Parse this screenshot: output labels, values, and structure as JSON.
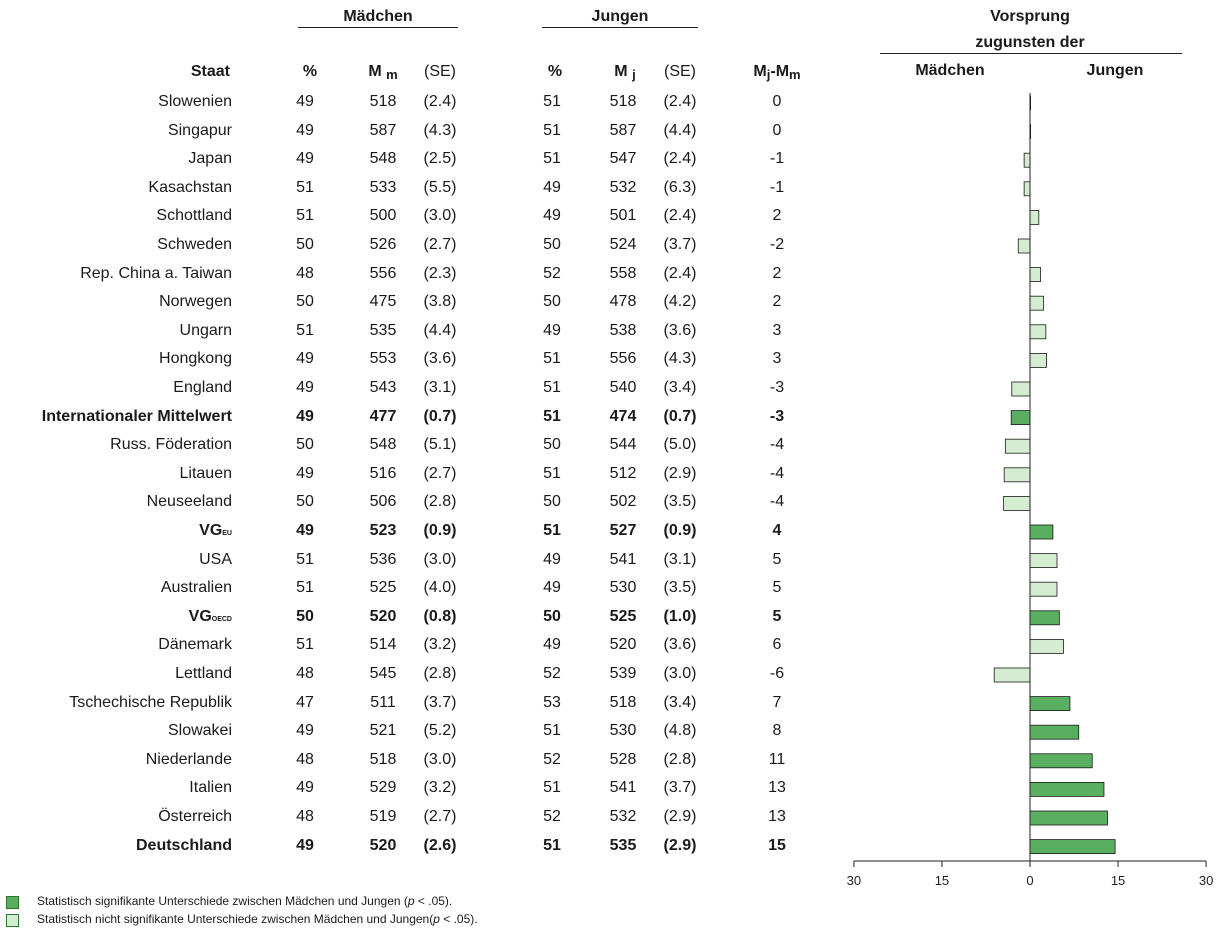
{
  "chart_data": {
    "type": "table",
    "headers": {
      "group_maedchen": "Mädchen",
      "group_jungen": "Jungen",
      "staat": "Staat",
      "pct": "%",
      "m_main": "M",
      "m_sub_m": "m",
      "m_sub_j": "j",
      "se": "(SE)",
      "diff_a": "M",
      "diff_sub_j": "j",
      "diff_mid": "-M",
      "diff_sub_m": "m",
      "bar_title_1": "Vorsprung",
      "bar_title_2": "zugunsten der",
      "bar_left": "Mädchen",
      "bar_right": "Jungen"
    },
    "rows": [
      {
        "staat": "Slowenien",
        "sub": "",
        "pm": "49",
        "mm": "518",
        "sem": "(2.4)",
        "pj": "51",
        "mj": "518",
        "sej": "(2.4)",
        "diff": "0",
        "value": 0,
        "bold": false,
        "significant": false
      },
      {
        "staat": "Singapur",
        "sub": "",
        "pm": "49",
        "mm": "587",
        "sem": "(4.3)",
        "pj": "51",
        "mj": "587",
        "sej": "(4.4)",
        "diff": "0",
        "value": 0,
        "bold": false,
        "significant": false
      },
      {
        "staat": "Japan",
        "sub": "",
        "pm": "49",
        "mm": "548",
        "sem": "(2.5)",
        "pj": "51",
        "mj": "547",
        "sej": "(2.4)",
        "diff": "-1",
        "value": -1,
        "bold": false,
        "significant": false
      },
      {
        "staat": "Kasachstan",
        "sub": "",
        "pm": "51",
        "mm": "533",
        "sem": "(5.5)",
        "pj": "49",
        "mj": "532",
        "sej": "(6.3)",
        "diff": "-1",
        "value": -1,
        "bold": false,
        "significant": false
      },
      {
        "staat": "Schottland",
        "sub": "",
        "pm": "51",
        "mm": "500",
        "sem": "(3.0)",
        "pj": "49",
        "mj": "501",
        "sej": "(2.4)",
        "diff": "2",
        "value": 1.5,
        "bold": false,
        "significant": false
      },
      {
        "staat": "Schweden",
        "sub": "",
        "pm": "50",
        "mm": "526",
        "sem": "(2.7)",
        "pj": "50",
        "mj": "524",
        "sej": "(3.7)",
        "diff": "-2",
        "value": -2,
        "bold": false,
        "significant": false
      },
      {
        "staat": "Rep. China a. Taiwan",
        "sub": "",
        "pm": "48",
        "mm": "556",
        "sem": "(2.3)",
        "pj": "52",
        "mj": "558",
        "sej": "(2.4)",
        "diff": "2",
        "value": 1.8,
        "bold": false,
        "significant": false
      },
      {
        "staat": "Norwegen",
        "sub": "",
        "pm": "50",
        "mm": "475",
        "sem": "(3.8)",
        "pj": "50",
        "mj": "478",
        "sej": "(4.2)",
        "diff": "2",
        "value": 2.3,
        "bold": false,
        "significant": false
      },
      {
        "staat": "Ungarn",
        "sub": "",
        "pm": "51",
        "mm": "535",
        "sem": "(4.4)",
        "pj": "49",
        "mj": "538",
        "sej": "(3.6)",
        "diff": "3",
        "value": 2.7,
        "bold": false,
        "significant": false
      },
      {
        "staat": "Hongkong",
        "sub": "",
        "pm": "49",
        "mm": "553",
        "sem": "(3.6)",
        "pj": "51",
        "mj": "556",
        "sej": "(4.3)",
        "diff": "3",
        "value": 2.8,
        "bold": false,
        "significant": false
      },
      {
        "staat": "England",
        "sub": "",
        "pm": "49",
        "mm": "543",
        "sem": "(3.1)",
        "pj": "51",
        "mj": "540",
        "sej": "(3.4)",
        "diff": "-3",
        "value": -3.1,
        "bold": false,
        "significant": false
      },
      {
        "staat": "Internationaler Mittelwert",
        "sub": "",
        "pm": "49",
        "mm": "477",
        "sem": "(0.7)",
        "pj": "51",
        "mj": "474",
        "sej": "(0.7)",
        "diff": "-3",
        "value": -3.2,
        "bold": true,
        "significant": true
      },
      {
        "staat": "Russ. Föderation",
        "sub": "",
        "pm": "50",
        "mm": "548",
        "sem": "(5.1)",
        "pj": "50",
        "mj": "544",
        "sej": "(5.0)",
        "diff": "-4",
        "value": -4.2,
        "bold": false,
        "significant": false
      },
      {
        "staat": "Litauen",
        "sub": "",
        "pm": "49",
        "mm": "516",
        "sem": "(2.7)",
        "pj": "51",
        "mj": "512",
        "sej": "(2.9)",
        "diff": "-4",
        "value": -4.4,
        "bold": false,
        "significant": false
      },
      {
        "staat": "Neuseeland",
        "sub": "",
        "pm": "50",
        "mm": "506",
        "sem": "(2.8)",
        "pj": "50",
        "mj": "502",
        "sej": "(3.5)",
        "diff": "-4",
        "value": -4.5,
        "bold": false,
        "significant": false
      },
      {
        "staat": "VG",
        "sub": "EU",
        "pm": "49",
        "mm": "523",
        "sem": "(0.9)",
        "pj": "51",
        "mj": "527",
        "sej": "(0.9)",
        "diff": "4",
        "value": 3.9,
        "bold": true,
        "significant": true
      },
      {
        "staat": "USA",
        "sub": "",
        "pm": "51",
        "mm": "536",
        "sem": "(3.0)",
        "pj": "49",
        "mj": "541",
        "sej": "(3.1)",
        "diff": "5",
        "value": 4.6,
        "bold": false,
        "significant": false
      },
      {
        "staat": "Australien",
        "sub": "",
        "pm": "51",
        "mm": "525",
        "sem": "(4.0)",
        "pj": "49",
        "mj": "530",
        "sej": "(3.5)",
        "diff": "5",
        "value": 4.6,
        "bold": false,
        "significant": false
      },
      {
        "staat": "VG",
        "sub": "OECD",
        "pm": "50",
        "mm": "520",
        "sem": "(0.8)",
        "pj": "50",
        "mj": "525",
        "sej": "(1.0)",
        "diff": "5",
        "value": 5.0,
        "bold": true,
        "significant": true
      },
      {
        "staat": "Dänemark",
        "sub": "",
        "pm": "51",
        "mm": "514",
        "sem": "(3.2)",
        "pj": "49",
        "mj": "520",
        "sej": "(3.6)",
        "diff": "6",
        "value": 5.7,
        "bold": false,
        "significant": false
      },
      {
        "staat": "Lettland",
        "sub": "",
        "pm": "48",
        "mm": "545",
        "sem": "(2.8)",
        "pj": "52",
        "mj": "539",
        "sej": "(3.0)",
        "diff": "-6",
        "value": -6.1,
        "bold": false,
        "significant": false
      },
      {
        "staat": "Tschechische Republik",
        "sub": "",
        "pm": "47",
        "mm": "511",
        "sem": "(3.7)",
        "pj": "53",
        "mj": "518",
        "sej": "(3.4)",
        "diff": "7",
        "value": 6.8,
        "bold": false,
        "significant": true
      },
      {
        "staat": "Slowakei",
        "sub": "",
        "pm": "49",
        "mm": "521",
        "sem": "(5.2)",
        "pj": "51",
        "mj": "530",
        "sej": "(4.8)",
        "diff": "8",
        "value": 8.3,
        "bold": false,
        "significant": true
      },
      {
        "staat": "Niederlande",
        "sub": "",
        "pm": "48",
        "mm": "518",
        "sem": "(3.0)",
        "pj": "52",
        "mj": "528",
        "sej": "(2.8)",
        "diff": "11",
        "value": 10.6,
        "bold": false,
        "significant": true
      },
      {
        "staat": "Italien",
        "sub": "",
        "pm": "49",
        "mm": "529",
        "sem": "(3.2)",
        "pj": "51",
        "mj": "541",
        "sej": "(3.7)",
        "diff": "13",
        "value": 12.6,
        "bold": false,
        "significant": true
      },
      {
        "staat": "Österreich",
        "sub": "",
        "pm": "48",
        "mm": "519",
        "sem": "(2.7)",
        "pj": "52",
        "mj": "532",
        "sej": "(2.9)",
        "diff": "13",
        "value": 13.2,
        "bold": false,
        "significant": true
      },
      {
        "staat": "Deutschland",
        "sub": "",
        "pm": "49",
        "mm": "520",
        "sem": "(2.6)",
        "pj": "51",
        "mj": "535",
        "sej": "(2.9)",
        "diff": "15",
        "value": 14.5,
        "bold": true,
        "significant": true
      }
    ],
    "x_axis": {
      "ticks": [
        "30",
        "15",
        "0",
        "15",
        "30"
      ],
      "tick_values": [
        -30,
        -15,
        0,
        15,
        30
      ],
      "range": [
        -30,
        30
      ]
    },
    "colors": {
      "significant": "#5aae5f",
      "not_significant": "#d4ecd0",
      "stroke": "#1a1a1a"
    },
    "legend": {
      "sig_text": "Statistisch signifikante Unterschiede zwischen Mädchen und Jungen (",
      "sig_p": "p",
      "sig_tail": " < .05).",
      "nonsig_text": "Statistisch nicht signifikante Unterschiede zwischen Mädchen und Jungen(",
      "nonsig_p": "p",
      "nonsig_tail": " < .05)."
    }
  }
}
